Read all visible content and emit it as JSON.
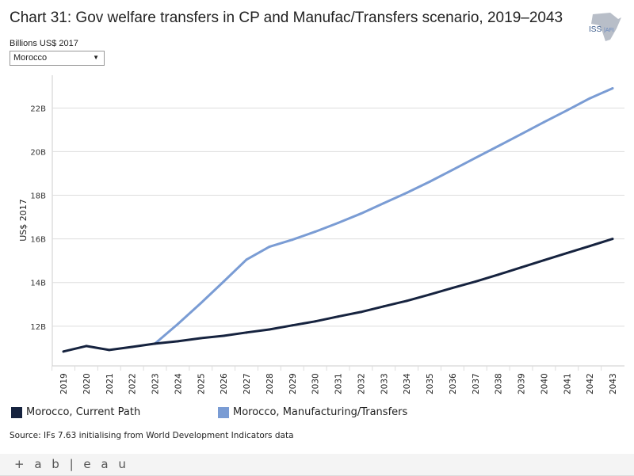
{
  "header": {
    "title": "Chart 31: Gov welfare transfers in CP and Manufac/Transfers scenario, 2019–2043",
    "subtitle": "Billions US$ 2017",
    "logo_text": "ISS AFRICA"
  },
  "filter": {
    "selected": "Morocco"
  },
  "chart_data": {
    "type": "line",
    "title": "Chart 31: Gov welfare transfers in CP and Manufac/Transfers scenario, 2019–2043",
    "ylabel": "US$ 2017",
    "xlabel": "",
    "x": [
      2019,
      2020,
      2021,
      2022,
      2023,
      2024,
      2025,
      2026,
      2027,
      2028,
      2029,
      2030,
      2031,
      2032,
      2033,
      2034,
      2035,
      2036,
      2037,
      2038,
      2039,
      2040,
      2041,
      2042,
      2043
    ],
    "ylim": [
      10.18,
      23.5
    ],
    "yticks": [
      12,
      14,
      16,
      18,
      20,
      22
    ],
    "ytick_labels": [
      "12B",
      "14B",
      "16B",
      "18B",
      "20B",
      "22B"
    ],
    "grid": true,
    "legend": "bottom",
    "series": [
      {
        "name": "Morocco, Current Path",
        "color": "#16233f",
        "values": [
          10.84,
          11.09,
          10.91,
          11.05,
          11.2,
          11.31,
          11.45,
          11.56,
          11.71,
          11.85,
          12.04,
          12.22,
          12.44,
          12.65,
          12.91,
          13.16,
          13.45,
          13.75,
          14.04,
          14.36,
          14.69,
          15.02,
          15.35,
          15.67,
          16.0
        ]
      },
      {
        "name": "Morocco, Manufacturing/Transfers",
        "color": "#7a9cd4",
        "values": [
          null,
          null,
          null,
          null,
          11.2,
          12.1,
          13.05,
          14.04,
          15.05,
          15.64,
          15.96,
          16.33,
          16.73,
          17.16,
          17.64,
          18.11,
          18.62,
          19.16,
          19.71,
          20.25,
          20.8,
          21.35,
          21.89,
          22.44,
          22.9
        ]
      }
    ]
  },
  "source": "Source: IFs 7.63 initialising from World Development Indicators data",
  "footer": {
    "brand": "+ a b | e a u"
  }
}
